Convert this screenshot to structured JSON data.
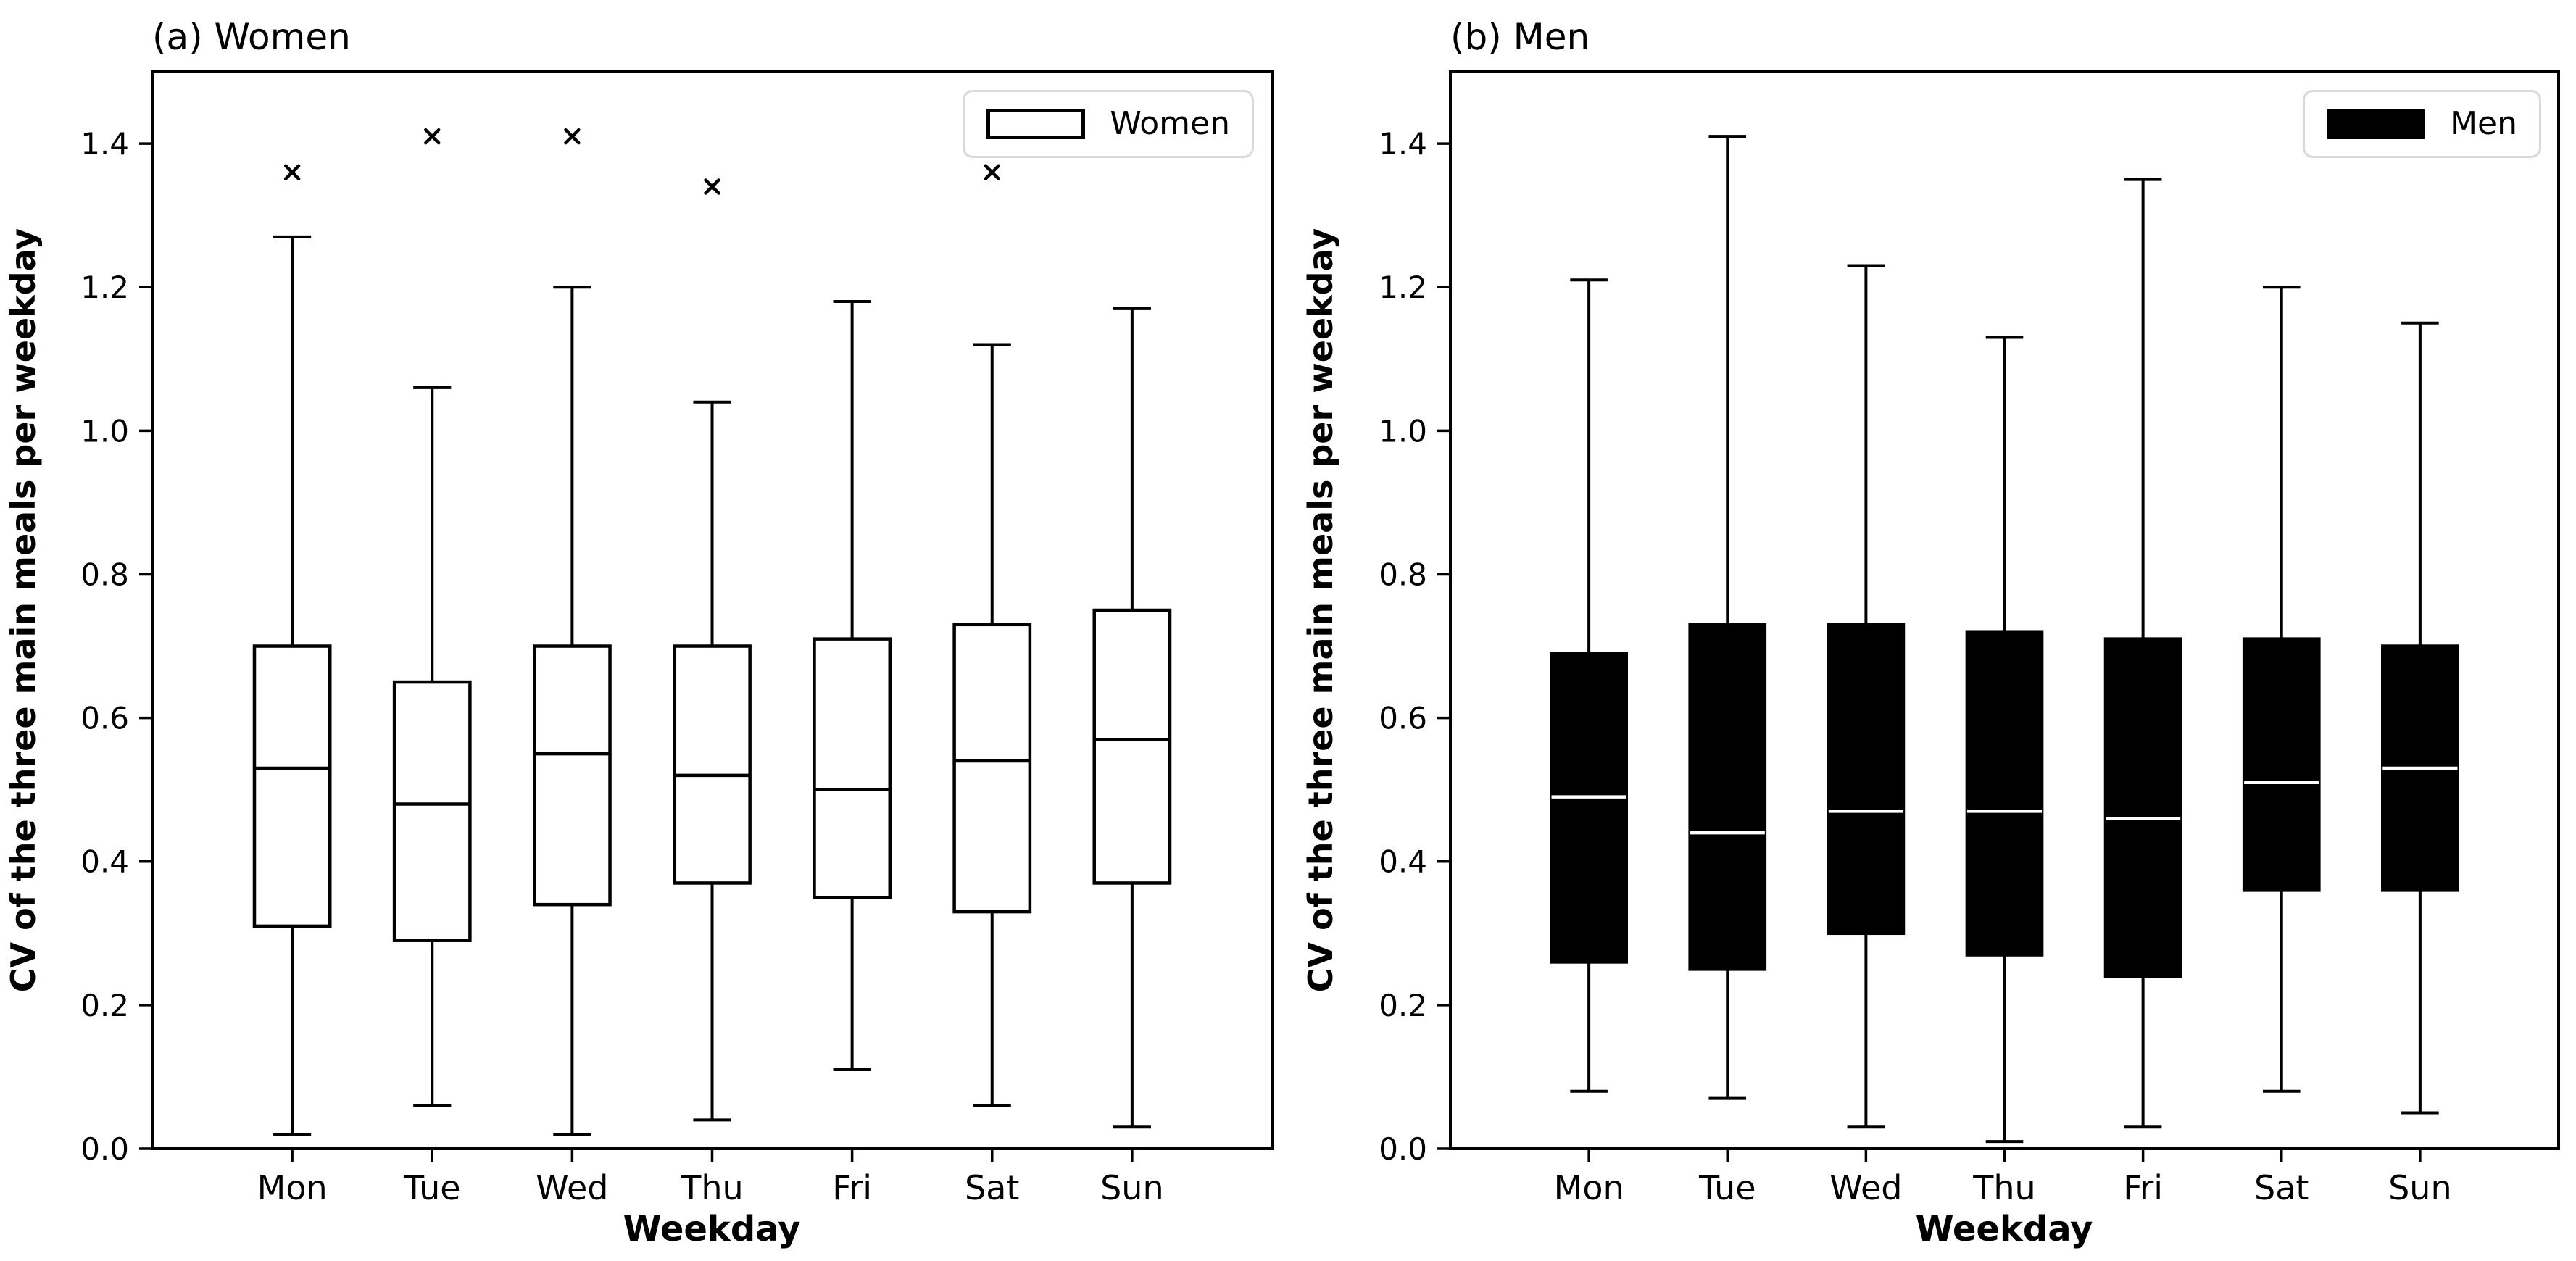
{
  "figure": {
    "background": "#ffffff",
    "ink_color": "#000000",
    "legend_border_color": "#d9d9d9"
  },
  "chart_data": [
    {
      "type": "boxplot",
      "title": "(a) Women",
      "xlabel": "Weekday",
      "ylabel": "CV of the three main meals per weekday",
      "categories": [
        "Mon",
        "Tue",
        "Wed",
        "Thu",
        "Fri",
        "Sat",
        "Sun"
      ],
      "ylim": [
        0,
        1.5
      ],
      "yticks": [
        0.0,
        0.2,
        0.4,
        0.6,
        0.8,
        1.0,
        1.2,
        1.4
      ],
      "grid": false,
      "legend": {
        "label": "Women",
        "swatch_fill": "#ffffff",
        "position": "upper right"
      },
      "box_style": {
        "fill": "#ffffff",
        "edge": "#000000",
        "median": "#000000",
        "flier_marker": "x"
      },
      "boxes": [
        {
          "category": "Mon",
          "whisker_low": 0.02,
          "q1": 0.31,
          "median": 0.53,
          "q3": 0.7,
          "whisker_high": 1.27,
          "outliers": [
            1.36
          ]
        },
        {
          "category": "Tue",
          "whisker_low": 0.06,
          "q1": 0.29,
          "median": 0.48,
          "q3": 0.65,
          "whisker_high": 1.06,
          "outliers": [
            1.41
          ]
        },
        {
          "category": "Wed",
          "whisker_low": 0.02,
          "q1": 0.34,
          "median": 0.55,
          "q3": 0.7,
          "whisker_high": 1.2,
          "outliers": [
            1.41
          ]
        },
        {
          "category": "Thu",
          "whisker_low": 0.04,
          "q1": 0.37,
          "median": 0.52,
          "q3": 0.7,
          "whisker_high": 1.04,
          "outliers": [
            1.34
          ]
        },
        {
          "category": "Fri",
          "whisker_low": 0.11,
          "q1": 0.35,
          "median": 0.5,
          "q3": 0.71,
          "whisker_high": 1.18,
          "outliers": []
        },
        {
          "category": "Sat",
          "whisker_low": 0.06,
          "q1": 0.33,
          "median": 0.54,
          "q3": 0.73,
          "whisker_high": 1.12,
          "outliers": [
            1.36
          ]
        },
        {
          "category": "Sun",
          "whisker_low": 0.03,
          "q1": 0.37,
          "median": 0.57,
          "q3": 0.75,
          "whisker_high": 1.17,
          "outliers": []
        }
      ]
    },
    {
      "type": "boxplot",
      "title": "(b) Men",
      "xlabel": "Weekday",
      "ylabel": "CV of the three main meals per weekday",
      "categories": [
        "Mon",
        "Tue",
        "Wed",
        "Thu",
        "Fri",
        "Sat",
        "Sun"
      ],
      "ylim": [
        0,
        1.5
      ],
      "yticks": [
        0.0,
        0.2,
        0.4,
        0.6,
        0.8,
        1.0,
        1.2,
        1.4
      ],
      "grid": false,
      "legend": {
        "label": "Men",
        "swatch_fill": "#000000",
        "position": "upper right"
      },
      "box_style": {
        "fill": "#000000",
        "edge": "#000000",
        "median": "#ffffff",
        "flier_marker": "x"
      },
      "boxes": [
        {
          "category": "Mon",
          "whisker_low": 0.08,
          "q1": 0.26,
          "median": 0.49,
          "q3": 0.69,
          "whisker_high": 1.21,
          "outliers": []
        },
        {
          "category": "Tue",
          "whisker_low": 0.07,
          "q1": 0.25,
          "median": 0.44,
          "q3": 0.73,
          "whisker_high": 1.41,
          "outliers": []
        },
        {
          "category": "Wed",
          "whisker_low": 0.03,
          "q1": 0.3,
          "median": 0.47,
          "q3": 0.73,
          "whisker_high": 1.23,
          "outliers": []
        },
        {
          "category": "Thu",
          "whisker_low": 0.01,
          "q1": 0.27,
          "median": 0.47,
          "q3": 0.72,
          "whisker_high": 1.13,
          "outliers": []
        },
        {
          "category": "Fri",
          "whisker_low": 0.03,
          "q1": 0.24,
          "median": 0.46,
          "q3": 0.71,
          "whisker_high": 1.35,
          "outliers": []
        },
        {
          "category": "Sat",
          "whisker_low": 0.08,
          "q1": 0.36,
          "median": 0.51,
          "q3": 0.71,
          "whisker_high": 1.2,
          "outliers": []
        },
        {
          "category": "Sun",
          "whisker_low": 0.05,
          "q1": 0.36,
          "median": 0.53,
          "q3": 0.7,
          "whisker_high": 1.15,
          "outliers": []
        }
      ]
    }
  ]
}
